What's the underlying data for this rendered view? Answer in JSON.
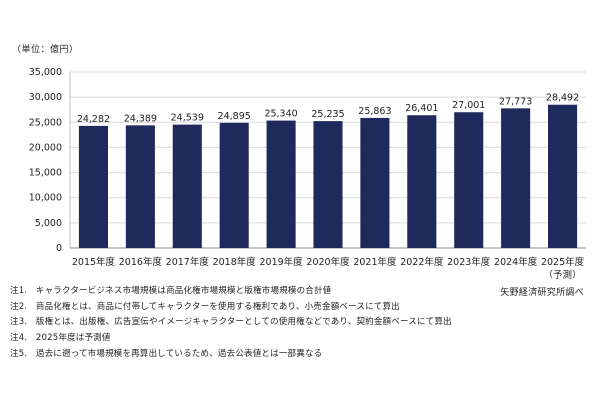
{
  "chart_data": {
    "type": "bar",
    "unit_label": "（単位：億円）",
    "categories": [
      "2015年度",
      "2016年度",
      "2017年度",
      "2018年度",
      "2019年度",
      "2020年度",
      "2021年度",
      "2022年度",
      "2023年度",
      "2024年度",
      "2025年度"
    ],
    "category_sublabels": [
      "",
      "",
      "",
      "",
      "",
      "",
      "",
      "",
      "",
      "",
      "（予測）"
    ],
    "values": [
      24282,
      24389,
      24539,
      24895,
      25340,
      25235,
      25863,
      26401,
      27001,
      27773,
      28492
    ],
    "value_labels": [
      "24,282",
      "24,389",
      "24,539",
      "24,895",
      "25,340",
      "25,235",
      "25,863",
      "26,401",
      "27,001",
      "27,773",
      "28,492"
    ],
    "ylim": [
      0,
      35000
    ],
    "yticks": [
      0,
      5000,
      10000,
      15000,
      20000,
      25000,
      30000,
      35000
    ],
    "ytick_labels": [
      "0",
      "5,000",
      "10,000",
      "15,000",
      "20,000",
      "25,000",
      "30,000",
      "35,000"
    ],
    "bar_color": "#1f2a5c",
    "grid": "horizontal",
    "source": "矢野経済研究所調べ"
  },
  "notes": [
    "注1.　キャラクタービジネス市場規模は商品化権市場規模と版権市場規模の合計値",
    "注2.　商品化権とは、商品に付帯してキャラクターを使用する権利であり、小売金額ベースにて算出",
    "注3.　版権とは、出版権、広告宣伝やイメージキャラクターとしての使用権などであり、契約金額ベースにて算出",
    "注4.　2025年度は予測値",
    "注5.　過去に遡って市場規模を再算出しているため、過去公表値とは一部異なる"
  ]
}
